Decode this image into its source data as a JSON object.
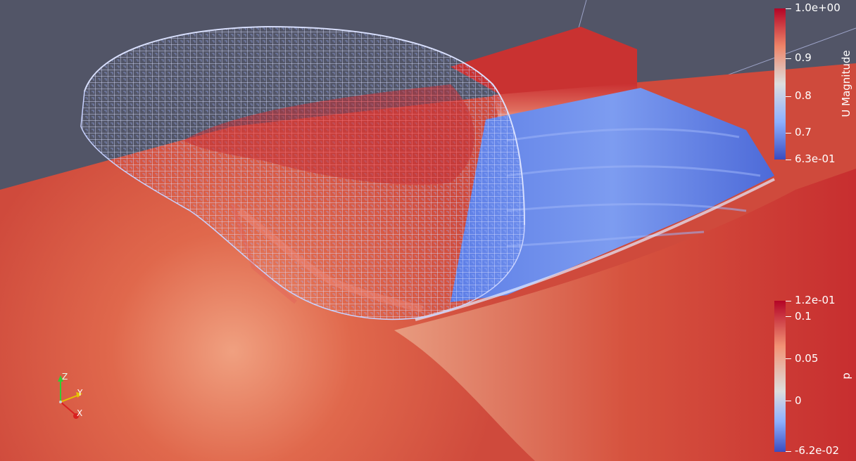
{
  "scene": {
    "background": "#525567",
    "surface_high": "#c42a2c",
    "surface_mid": "#e7a48a",
    "surface_low": "#4c6be0"
  },
  "colorbars": [
    {
      "title": "U Magnitude",
      "min_label": "6.3e-01",
      "max_label": "1.0e+00",
      "ticks": [
        "0.9",
        "0.8",
        "0.7"
      ]
    },
    {
      "title": "p",
      "min_label": "-6.2e-02",
      "max_label": "1.2e-01",
      "ticks": [
        "0.1",
        "0.05",
        "0"
      ]
    }
  ],
  "orientation_axes": {
    "z": "Z",
    "y": "Y",
    "x": "X",
    "colors": {
      "z": "#33cc33",
      "y": "#e6c300",
      "x": "#d92020"
    }
  }
}
